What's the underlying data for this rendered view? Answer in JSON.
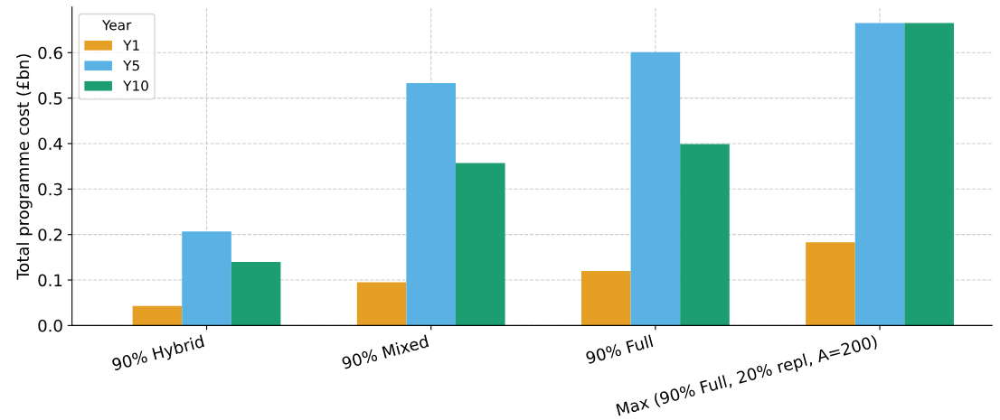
{
  "chart_data": {
    "type": "bar",
    "ylabel": "Total programme cost (£bn)",
    "legend_title": "Year",
    "legend": "top left",
    "grid": true,
    "line_style": "dashed",
    "categories": [
      "90% Hybrid",
      "90% Mixed",
      "90% Full",
      "Max (90% Full, 20% repl, A=200)"
    ],
    "series": [
      {
        "name": "Y1",
        "color": "#e69f25",
        "values": [
          0.043,
          0.095,
          0.12,
          0.183
        ]
      },
      {
        "name": "Y5",
        "color": "#5ab2e4",
        "values": [
          0.207,
          0.533,
          0.601,
          0.665
        ]
      },
      {
        "name": "Y10",
        "color": "#1d9d72",
        "values": [
          0.14,
          0.357,
          0.399,
          0.665
        ]
      }
    ],
    "ylim": [
      0,
      0.7
    ],
    "yticks": [
      {
        "value": 0,
        "label": "0.0"
      },
      0.1,
      0.2,
      0.3,
      0.4,
      0.5,
      0.6
    ]
  }
}
